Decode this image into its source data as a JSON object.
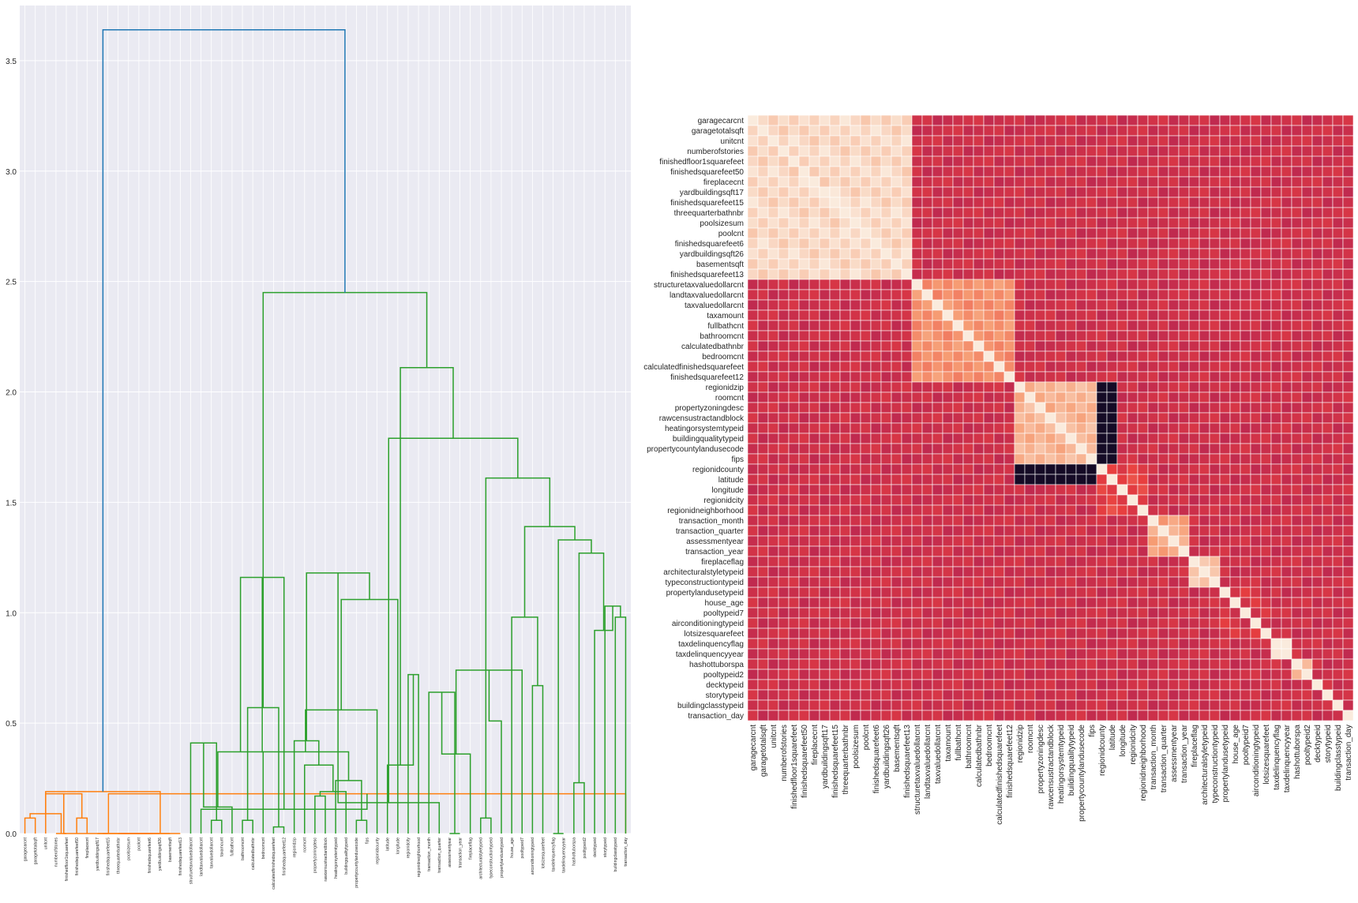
{
  "figure": {
    "background": "#ffffff",
    "panel_background": "#eaeaf2",
    "grid_color": "#ffffff"
  },
  "chart_data": [
    {
      "type": "dendrogram",
      "title": "",
      "xlabel": "",
      "ylabel": "",
      "ylim": [
        0,
        3.75
      ],
      "yticks": [
        0.0,
        0.5,
        1.0,
        1.5,
        2.0,
        2.5,
        3.0,
        3.5
      ],
      "grid": true,
      "leaves": [
        "garagecarcnt",
        "garagetotalsqft",
        "unitcnt",
        "numberofstories",
        "finishedfloor1squarefeet",
        "finishedsquarefeet50",
        "fireplacecnt",
        "yardbuildingsqft17",
        "finishedsquarefeet15",
        "threequarterbathnbr",
        "poolsizesum",
        "poolcnt",
        "finishedsquarefeet6",
        "yardbuildingsqft26",
        "basementsqft",
        "finishedsquarefeet13",
        "structuretaxvaluedollarcnt",
        "landtaxvaluedollarcnt",
        "taxvaluedollarcnt",
        "taxamount",
        "fullbathcnt",
        "bathroomcnt",
        "calculatedbathnbr",
        "bedroomcnt",
        "calculatedfinishedsquarefeet",
        "finishedsquarefeet12",
        "regionidzip",
        "roomcnt",
        "propertyzoningdesc",
        "rawcensustractandblock",
        "heatingorsystemtypeid",
        "buildingqualitytypeid",
        "propertycountylandusecode",
        "fips",
        "regionidcounty",
        "latitude",
        "longitude",
        "regionidcity",
        "regionidneighborhood",
        "transaction_month",
        "transaction_quarter",
        "assessmentyear",
        "transaction_year",
        "fireplaceflag",
        "architecturalstyletypeid",
        "typeconstructiontypeid",
        "propertylandusetypeid",
        "house_age",
        "pooltypeid7",
        "airconditioningtypeid",
        "lotsizesquarefeet",
        "taxdelinquencyflag",
        "taxdelinquencyyear",
        "hashottuborspa",
        "pooltypeid2",
        "decktypeid",
        "storytypeid",
        "buildingclasstypeid",
        "transaction_day"
      ],
      "link_colors": {
        "root": "#1f77b4",
        "cluster_1": "#ff7f0e",
        "cluster_2": "#2ca02c"
      },
      "links": [
        {
          "a": 0,
          "b": 1,
          "h": 0.07,
          "c": "cluster_1"
        },
        {
          "a": 3,
          "b": 4,
          "h": 0.0,
          "c": "cluster_1"
        },
        {
          "a": 5,
          "b": 6,
          "h": 0.07,
          "c": "cluster_1"
        },
        {
          "a": 59,
          "b": 60,
          "h": 0.09,
          "c": "cluster_1"
        },
        {
          "a": 2,
          "b": 61,
          "h": 0.18,
          "c": "cluster_1"
        },
        {
          "a": 7,
          "b": 8,
          "h": 0.0,
          "c": "cluster_1"
        },
        {
          "a": 9,
          "b": 10,
          "h": 0.0,
          "c": "cluster_1"
        },
        {
          "a": 64,
          "b": 11,
          "h": 0.0,
          "c": "cluster_1"
        },
        {
          "a": 65,
          "b": 12,
          "h": 0.0,
          "c": "cluster_1"
        },
        {
          "a": 66,
          "b": 13,
          "h": 0.0,
          "c": "cluster_1"
        },
        {
          "a": 67,
          "b": 14,
          "h": 0.0,
          "c": "cluster_1"
        },
        {
          "a": 68,
          "b": 15,
          "h": 0.0,
          "c": "cluster_1"
        },
        {
          "a": 63,
          "b": 69,
          "h": 0.0,
          "c": "cluster_1"
        },
        {
          "a": 62,
          "b": 70,
          "h": 0.19,
          "c": "cluster_1"
        },
        {
          "a": 58,
          "b": 71,
          "h": 0.18,
          "c": "cluster_1"
        },
        {
          "a": 18,
          "b": 19,
          "h": 0.06,
          "c": "cluster_2"
        },
        {
          "a": 17,
          "b": 73,
          "h": 0.11,
          "c": "cluster_2"
        },
        {
          "a": 16,
          "b": 74,
          "h": 0.41,
          "c": "cluster_2"
        },
        {
          "a": 21,
          "b": 22,
          "h": 0.06,
          "c": "cluster_2"
        },
        {
          "a": 20,
          "b": 76,
          "h": 0.12,
          "c": "cluster_2"
        },
        {
          "a": 24,
          "b": 25,
          "h": 0.03,
          "c": "cluster_2"
        },
        {
          "a": 23,
          "b": 78,
          "h": 0.37,
          "c": "cluster_2"
        },
        {
          "a": 77,
          "b": 79,
          "h": 0.57,
          "c": "cluster_2"
        },
        {
          "a": 75,
          "b": 80,
          "h": 1.16,
          "c": "cluster_2"
        },
        {
          "a": 28,
          "b": 29,
          "h": 0.17,
          "c": "cluster_2"
        },
        {
          "a": 32,
          "b": 33,
          "h": 0.06,
          "c": "cluster_2"
        },
        {
          "a": 31,
          "b": 83,
          "h": 0.19,
          "c": "cluster_2"
        },
        {
          "a": 30,
          "b": 84,
          "h": 0.24,
          "c": "cluster_2"
        },
        {
          "a": 27,
          "b": 85,
          "h": 0.31,
          "c": "cluster_2"
        },
        {
          "a": 82,
          "b": 86,
          "h": 0.37,
          "c": "cluster_2"
        },
        {
          "a": 26,
          "b": 87,
          "h": 0.42,
          "c": "cluster_2"
        },
        {
          "a": 34,
          "b": 88,
          "h": 0.56,
          "c": "cluster_2"
        },
        {
          "a": 37,
          "b": 38,
          "h": 0.72,
          "c": "cluster_2"
        },
        {
          "a": 36,
          "b": 90,
          "h": 1.06,
          "c": "cluster_2"
        },
        {
          "a": 35,
          "b": 91,
          "h": 0.31,
          "c": "cluster_2"
        },
        {
          "a": 89,
          "b": 92,
          "h": 1.18,
          "c": "cluster_2"
        },
        {
          "a": 41,
          "b": 42,
          "h": 0.0,
          "c": "cluster_2"
        },
        {
          "a": 40,
          "b": 94,
          "h": 0.14,
          "c": "cluster_2"
        },
        {
          "a": 39,
          "b": 95,
          "h": 0.64,
          "c": "cluster_2"
        },
        {
          "a": 44,
          "b": 45,
          "h": 0.07,
          "c": "cluster_2"
        },
        {
          "a": 43,
          "b": 97,
          "h": 0.36,
          "c": "cluster_2"
        },
        {
          "a": 49,
          "b": 50,
          "h": 0.67,
          "c": "cluster_2"
        },
        {
          "a": 48,
          "b": 99,
          "h": 0.74,
          "c": "cluster_2"
        },
        {
          "a": 47,
          "b": 100,
          "h": 0.98,
          "c": "cluster_2"
        },
        {
          "a": 46,
          "b": 101,
          "h": 0.51,
          "c": "cluster_2"
        },
        {
          "a": 51,
          "b": 52,
          "h": 0.0,
          "c": "cluster_2"
        },
        {
          "a": 53,
          "b": 54,
          "h": 0.23,
          "c": "cluster_2"
        },
        {
          "a": 57,
          "b": 58,
          "h": 0.98,
          "c": "cluster_2"
        },
        {
          "a": 56,
          "b": 106,
          "h": 1.03,
          "c": "cluster_2"
        },
        {
          "a": 55,
          "b": 107,
          "h": 0.92,
          "c": "cluster_2"
        },
        {
          "a": 105,
          "b": 108,
          "h": 1.27,
          "c": "cluster_2"
        },
        {
          "a": 104,
          "b": 109,
          "h": 1.33,
          "c": "cluster_2"
        },
        {
          "a": 102,
          "b": 110,
          "h": 1.39,
          "c": "cluster_2"
        },
        {
          "a": 98,
          "b": 111,
          "h": 1.61,
          "c": "cluster_2"
        },
        {
          "a": 96,
          "b": 112,
          "h": 1.79,
          "c": "cluster_2"
        },
        {
          "a": 93,
          "b": 113,
          "h": 2.11,
          "c": "cluster_2"
        },
        {
          "a": 81,
          "b": 114,
          "h": 2.45,
          "c": "cluster_2"
        },
        {
          "a": 72,
          "b": 115,
          "h": 3.64,
          "c": "root"
        }
      ]
    },
    {
      "type": "heatmap",
      "title": "",
      "labels": [
        "garagecarcnt",
        "garagetotalsqft",
        "unitcnt",
        "numberofstories",
        "finishedfloor1squarefeet",
        "finishedsquarefeet50",
        "fireplacecnt",
        "yardbuildingsqft17",
        "finishedsquarefeet15",
        "threequarterbathnbr",
        "poolsizesum",
        "poolcnt",
        "finishedsquarefeet6",
        "yardbuildingsqft26",
        "basementsqft",
        "finishedsquarefeet13",
        "structuretaxvaluedollarcnt",
        "landtaxvaluedollarcnt",
        "taxvaluedollarcnt",
        "taxamount",
        "fullbathcnt",
        "bathroomcnt",
        "calculatedbathnbr",
        "bedroomcnt",
        "calculatedfinishedsquarefeet",
        "finishedsquarefeet12",
        "regionidzip",
        "roomcnt",
        "propertyzoningdesc",
        "rawcensustractandblock",
        "heatingorsystemtypeid",
        "buildingqualitytypeid",
        "propertycountylandusecode",
        "fips",
        "regionidcounty",
        "latitude",
        "longitude",
        "regionidcity",
        "regionidneighborhood",
        "transaction_month",
        "transaction_quarter",
        "assessmentyear",
        "transaction_year",
        "fireplaceflag",
        "architecturalstyletypeid",
        "typeconstructiontypeid",
        "propertylandusetypeid",
        "house_age",
        "pooltypeid7",
        "airconditioningtypeid",
        "lotsizesquarefeet",
        "taxdelinquencyflag",
        "taxdelinquencyyear",
        "hashottuborspa",
        "pooltypeid2",
        "decktypeid",
        "storytypeid",
        "buildingclasstypeid",
        "transaction_day"
      ],
      "blocks": [
        [
          0,
          15
        ],
        [
          16,
          25
        ],
        [
          26,
          33
        ],
        [
          34,
          38
        ],
        [
          39,
          42
        ],
        [
          43,
          45
        ],
        [
          46,
          50
        ],
        [
          51,
          52
        ],
        [
          53,
          54
        ]
      ],
      "block_values": [
        0.9,
        0.55,
        0.72,
        0.2,
        0.65,
        0.8,
        0.1,
        0.92,
        0.7
      ],
      "background_value": 0.04,
      "dark_bands": [
        {
          "rows": [
            34,
            35
          ],
          "cols": [
            26,
            33
          ],
          "v": -0.9
        },
        {
          "rows": [
            26,
            33
          ],
          "cols": [
            34,
            35
          ],
          "v": -0.9
        }
      ],
      "colormap": [
        "#03051a",
        "#4c1d4b",
        "#a11a5b",
        "#e83f3f",
        "#f69c73",
        "#faebdd"
      ],
      "vmin": -1,
      "vmax": 1
    }
  ]
}
